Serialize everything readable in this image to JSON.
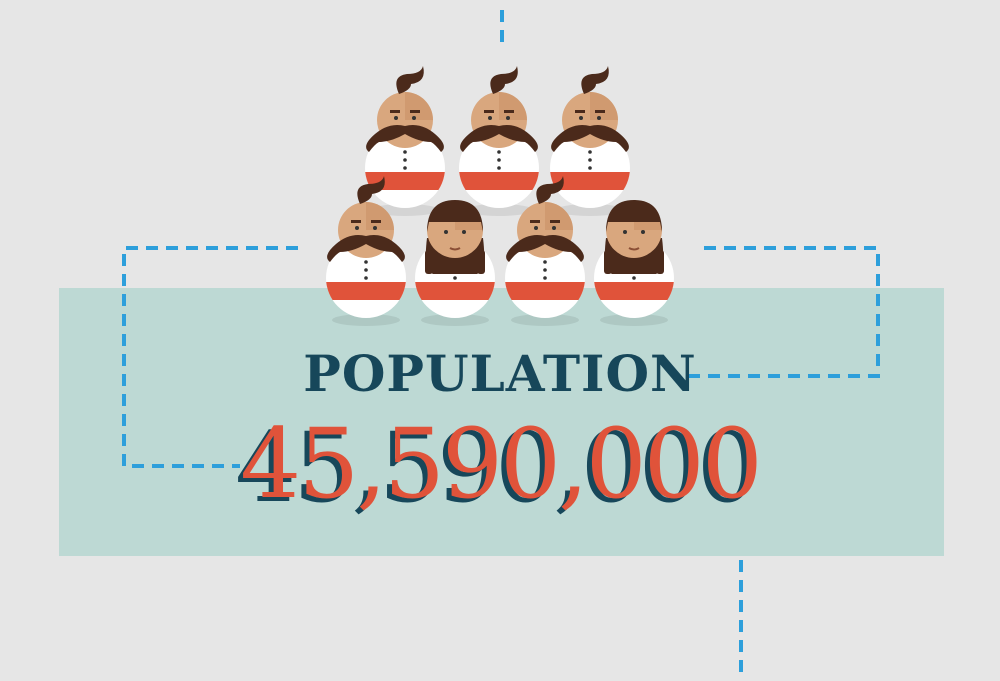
{
  "stat": {
    "label": "POPULATION",
    "value": "45,590,000"
  },
  "figures": [
    {
      "kind": "man"
    },
    {
      "kind": "man"
    },
    {
      "kind": "man"
    },
    {
      "kind": "man"
    },
    {
      "kind": "woman"
    },
    {
      "kind": "man"
    },
    {
      "kind": "woman"
    }
  ],
  "colors": {
    "background": "#e6e6e6",
    "panel": "#bdd9d4",
    "accent_red": "#e0533a",
    "dark_teal": "#17475a",
    "connector_blue": "#2d9fdb",
    "skin": "#d9a77e",
    "hair": "#4b2a1b"
  }
}
